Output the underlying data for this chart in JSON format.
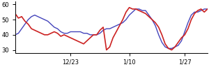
{
  "xlim": [
    0,
    59
  ],
  "ylim": [
    28,
    62
  ],
  "yticks": [
    30,
    40,
    50,
    60
  ],
  "xtick_positions": [
    17,
    35,
    52
  ],
  "xtick_labels": [
    "12/23",
    "1/10",
    "1/27"
  ],
  "red_line": [
    54,
    51,
    52,
    49,
    47,
    44,
    43,
    42,
    41,
    40,
    40,
    41,
    42,
    41,
    39,
    40,
    39,
    38,
    37,
    36,
    35,
    34,
    36,
    38,
    40,
    40,
    43,
    45,
    30,
    32,
    38,
    42,
    46,
    50,
    55,
    58,
    57,
    57,
    56,
    55,
    54,
    52,
    50,
    48,
    45,
    40,
    34,
    31,
    30,
    32,
    35,
    38,
    40,
    44,
    50,
    54,
    56,
    57,
    55,
    57
  ],
  "blue_line": [
    40,
    41,
    44,
    47,
    50,
    52,
    53,
    52,
    51,
    50,
    49,
    47,
    45,
    44,
    42,
    41,
    41,
    42,
    42,
    42,
    42,
    41,
    41,
    40,
    40,
    40,
    41,
    43,
    44,
    44,
    45,
    46,
    47,
    48,
    50,
    53,
    55,
    57,
    57,
    56,
    56,
    53,
    50,
    46,
    40,
    35,
    32,
    31,
    31,
    32,
    33,
    36,
    42,
    48,
    53,
    55,
    55,
    56,
    57,
    57
  ],
  "red_color": "#cc2222",
  "blue_color": "#4444bb",
  "bg_color": "#ffffff",
  "red_linewidth": 1.2,
  "blue_linewidth": 1.0
}
